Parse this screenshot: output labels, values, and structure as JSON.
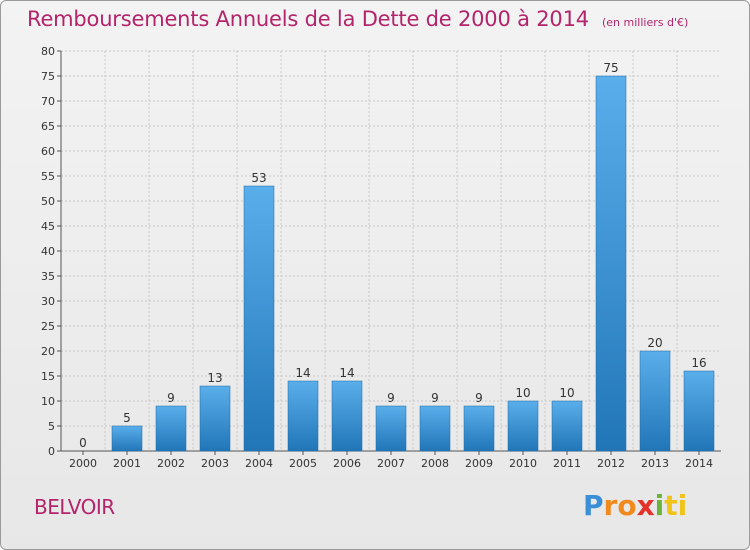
{
  "header": {
    "title": "Remboursements Annuels de la Dette de 2000 à 2014",
    "unit": "(en milliers d'€)"
  },
  "place_name": "BELVOIR",
  "logo": {
    "parts": [
      "P",
      "ro",
      "x",
      "i",
      "ti"
    ]
  },
  "colors": {
    "bar_top": "#5aaeea",
    "bar_bottom": "#2176b8",
    "title": "#b3246b",
    "grid": "#c8c8c8"
  },
  "chart_data": {
    "type": "bar",
    "title": "Remboursements Annuels de la Dette de 2000 à 2014",
    "categories": [
      "2000",
      "2001",
      "2002",
      "2003",
      "2004",
      "2005",
      "2006",
      "2007",
      "2008",
      "2009",
      "2010",
      "2011",
      "2012",
      "2013",
      "2014"
    ],
    "values": [
      0,
      5,
      9,
      13,
      53,
      14,
      14,
      9,
      9,
      9,
      10,
      10,
      75,
      20,
      16
    ],
    "ylim": [
      0,
      80
    ],
    "yticks": [
      0,
      5,
      10,
      15,
      20,
      25,
      30,
      35,
      40,
      45,
      50,
      55,
      60,
      65,
      70,
      75,
      80
    ],
    "grid": true,
    "data_labels": true
  }
}
